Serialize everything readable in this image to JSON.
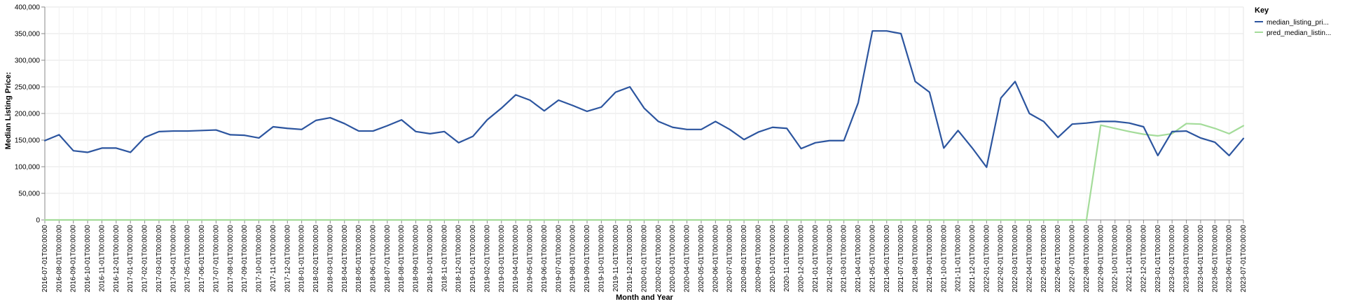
{
  "chart_data": {
    "type": "line",
    "title": "",
    "xlabel": "Month and Year",
    "ylabel": "Median Listing Price:",
    "ylim": [
      0,
      400000
    ],
    "yticks": [
      "0",
      "50,000",
      "100,000",
      "150,000",
      "200,000",
      "250,000",
      "300,000",
      "350,000",
      "400,000"
    ],
    "ytick_values": [
      0,
      50000,
      100000,
      150000,
      200000,
      250000,
      300000,
      350000,
      400000
    ],
    "grid": true,
    "legend": {
      "title": "Key",
      "position": "top-right"
    },
    "colors": {
      "median": "#2c559f",
      "pred": "#a4dc9a"
    },
    "x": [
      "2016-07-01T00:00:00",
      "2016-08-01T00:00:00",
      "2016-09-01T00:00:00",
      "2016-10-01T00:00:00",
      "2016-11-01T00:00:00",
      "2016-12-01T00:00:00",
      "2017-01-01T00:00:00",
      "2017-02-01T00:00:00",
      "2017-03-01T00:00:00",
      "2017-04-01T00:00:00",
      "2017-05-01T00:00:00",
      "2017-06-01T00:00:00",
      "2017-07-01T00:00:00",
      "2017-08-01T00:00:00",
      "2017-09-01T00:00:00",
      "2017-10-01T00:00:00",
      "2017-11-01T00:00:00",
      "2017-12-01T00:00:00",
      "2018-01-01T00:00:00",
      "2018-02-01T00:00:00",
      "2018-03-01T00:00:00",
      "2018-04-01T00:00:00",
      "2018-05-01T00:00:00",
      "2018-06-01T00:00:00",
      "2018-07-01T00:00:00",
      "2018-08-01T00:00:00",
      "2018-09-01T00:00:00",
      "2018-10-01T00:00:00",
      "2018-11-01T00:00:00",
      "2018-12-01T00:00:00",
      "2019-01-01T00:00:00",
      "2019-02-01T00:00:00",
      "2019-03-01T00:00:00",
      "2019-04-01T00:00:00",
      "2019-05-01T00:00:00",
      "2019-06-01T00:00:00",
      "2019-07-01T00:00:00",
      "2019-08-01T00:00:00",
      "2019-09-01T00:00:00",
      "2019-10-01T00:00:00",
      "2019-11-01T00:00:00",
      "2019-12-01T00:00:00",
      "2020-01-01T00:00:00",
      "2020-02-01T00:00:00",
      "2020-03-01T00:00:00",
      "2020-04-01T00:00:00",
      "2020-05-01T00:00:00",
      "2020-06-01T00:00:00",
      "2020-07-01T00:00:00",
      "2020-08-01T00:00:00",
      "2020-09-01T00:00:00",
      "2020-10-01T00:00:00",
      "2020-11-01T00:00:00",
      "2020-12-01T00:00:00",
      "2021-01-01T00:00:00",
      "2021-02-01T00:00:00",
      "2021-03-01T00:00:00",
      "2021-04-01T00:00:00",
      "2021-05-01T00:00:00",
      "2021-06-01T00:00:00",
      "2021-07-01T00:00:00",
      "2021-08-01T00:00:00",
      "2021-09-01T00:00:00",
      "2021-10-01T00:00:00",
      "2021-11-01T00:00:00",
      "2021-12-01T00:00:00",
      "2022-01-01T00:00:00",
      "2022-02-01T00:00:00",
      "2022-03-01T00:00:00",
      "2022-04-01T00:00:00",
      "2022-05-01T00:00:00",
      "2022-06-01T00:00:00",
      "2022-07-01T00:00:00",
      "2022-08-01T00:00:00",
      "2022-09-01T00:00:00",
      "2022-10-01T00:00:00",
      "2022-11-01T00:00:00",
      "2022-12-01T00:00:00",
      "2023-01-01T00:00:00",
      "2023-02-01T00:00:00",
      "2023-03-01T00:00:00",
      "2023-04-01T00:00:00",
      "2023-05-01T00:00:00",
      "2023-06-01T00:00:00",
      "2023-07-01T00:00:00"
    ],
    "series": [
      {
        "name": "median_listing_pri...",
        "color_key": "median",
        "values": [
          149000,
          160000,
          130000,
          127000,
          135000,
          135000,
          127000,
          155000,
          166000,
          167000,
          167000,
          168000,
          169000,
          160000,
          159000,
          154000,
          175000,
          172000,
          170000,
          187000,
          192000,
          181000,
          167000,
          167000,
          177000,
          188000,
          166000,
          162000,
          166000,
          145000,
          157000,
          188000,
          210000,
          235000,
          225000,
          205000,
          225000,
          215000,
          204000,
          212000,
          240000,
          250000,
          210000,
          185000,
          174000,
          170000,
          170000,
          185000,
          170000,
          151000,
          165000,
          174000,
          172000,
          134000,
          145000,
          149000,
          149000,
          220000,
          355000,
          355000,
          350000,
          260000,
          240000,
          135000,
          168000,
          135000,
          99000,
          229000,
          260000,
          200000,
          185000,
          155000,
          180000,
          182000,
          185000,
          185000,
          182000,
          175000,
          121000,
          166000,
          167000,
          154000,
          146000,
          121000,
          153000
        ]
      },
      {
        "name": "pred_median_listin...",
        "color_key": "pred",
        "values": [
          0,
          0,
          0,
          0,
          0,
          0,
          0,
          0,
          0,
          0,
          0,
          0,
          0,
          0,
          0,
          0,
          0,
          0,
          0,
          0,
          0,
          0,
          0,
          0,
          0,
          0,
          0,
          0,
          0,
          0,
          0,
          0,
          0,
          0,
          0,
          0,
          0,
          0,
          0,
          0,
          0,
          0,
          0,
          0,
          0,
          0,
          0,
          0,
          0,
          0,
          0,
          0,
          0,
          0,
          0,
          0,
          0,
          0,
          0,
          0,
          0,
          0,
          0,
          0,
          0,
          0,
          0,
          0,
          0,
          0,
          0,
          0,
          0,
          0,
          178000,
          172000,
          166000,
          161000,
          158000,
          162000,
          181000,
          180000,
          172000,
          162000,
          177000
        ]
      }
    ]
  }
}
